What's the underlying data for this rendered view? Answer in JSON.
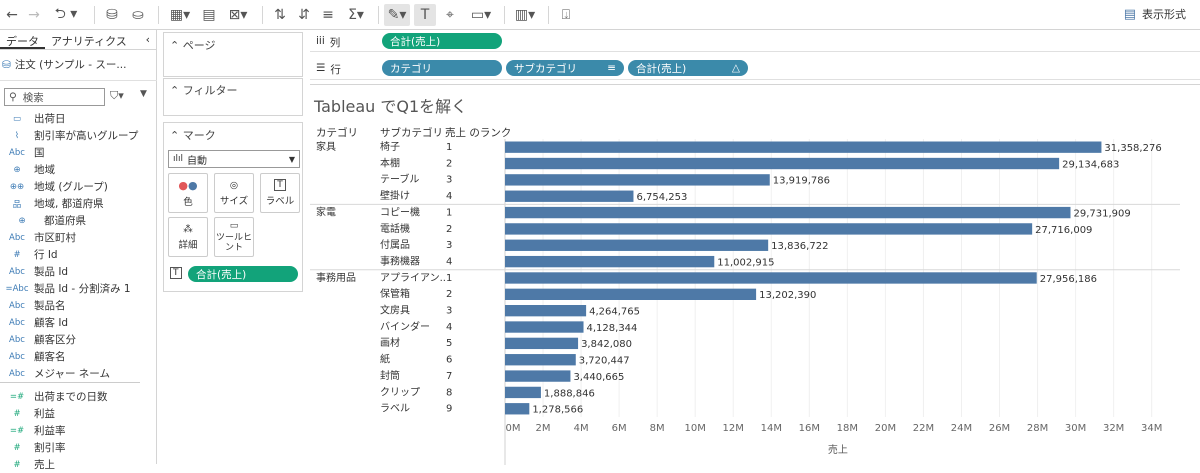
{
  "toolbar": {
    "show_me_label": "表示形式"
  },
  "data_pane": {
    "tabs": [
      "データ",
      "アナリティクス"
    ],
    "datasource": "注文 (サンプル - スー...",
    "search_placeholder": "検索",
    "fields": [
      {
        "icon": "calendar",
        "label": "出荷日",
        "kind": "dim"
      },
      {
        "icon": "paperclip",
        "label": "割引率が高いグループ",
        "kind": "dim"
      },
      {
        "icon": "Abc",
        "label": "国",
        "kind": "dim"
      },
      {
        "icon": "globe",
        "label": "地域",
        "kind": "dim"
      },
      {
        "icon": "group",
        "label": "地域 (グループ)",
        "kind": "dim"
      },
      {
        "icon": "hierarchy",
        "label": "地域, 都道府県",
        "kind": "dim"
      },
      {
        "icon": "globe",
        "label": "都道府県",
        "kind": "dim",
        "sub": true
      },
      {
        "icon": "Abc",
        "label": "市区町村",
        "kind": "dim"
      },
      {
        "icon": "#",
        "label": "行 Id",
        "kind": "dim"
      },
      {
        "icon": "Abc",
        "label": "製品 Id",
        "kind": "dim"
      },
      {
        "icon": "=Abc",
        "label": "製品 Id - 分割済み 1",
        "kind": "dim"
      },
      {
        "icon": "Abc",
        "label": "製品名",
        "kind": "dim"
      },
      {
        "icon": "Abc",
        "label": "顧客 Id",
        "kind": "dim"
      },
      {
        "icon": "Abc",
        "label": "顧客区分",
        "kind": "dim"
      },
      {
        "icon": "Abc",
        "label": "顧客名",
        "kind": "dim"
      },
      {
        "icon": "Abc",
        "label": "メジャー ネーム",
        "kind": "dim"
      },
      {
        "icon": "=#",
        "label": "出荷までの日数",
        "kind": "meas"
      },
      {
        "icon": "#",
        "label": "利益",
        "kind": "meas"
      },
      {
        "icon": "=#",
        "label": "利益率",
        "kind": "meas"
      },
      {
        "icon": "#",
        "label": "割引率",
        "kind": "meas"
      },
      {
        "icon": "#",
        "label": "売上",
        "kind": "meas"
      }
    ]
  },
  "cards": {
    "pages": "ページ",
    "filters": "フィルター",
    "marks": "マーク",
    "mark_type": "自動",
    "buttons": [
      "色",
      "サイズ",
      "ラベル",
      "詳細",
      "ツールヒント"
    ],
    "label_pill": "合計(売上)"
  },
  "shelves": {
    "columns_label": "列",
    "rows_label": "行",
    "columns_pills": [
      "合計(売上)"
    ],
    "rows_pills": [
      "カテゴリ",
      "サブカテゴリ",
      "合計(売上)"
    ]
  },
  "view": {
    "title": "Tableau でQ1を解く",
    "headers": [
      "カテゴリ",
      "サブカテゴリ",
      "売上 のランク"
    ]
  },
  "chart_data": {
    "type": "bar",
    "orientation": "horizontal",
    "bar_color": "#4e79a7",
    "xlabel": "売上",
    "xlim": [
      0,
      35000000
    ],
    "x_ticks": [
      "0M",
      "2M",
      "4M",
      "6M",
      "8M",
      "10M",
      "12M",
      "14M",
      "16M",
      "18M",
      "20M",
      "22M",
      "24M",
      "26M",
      "28M",
      "30M",
      "32M",
      "34M"
    ],
    "groups": [
      {
        "category": "家具",
        "rows": [
          {
            "sub": "椅子",
            "rank": 1,
            "value": 31358276,
            "label": "31,358,276"
          },
          {
            "sub": "本棚",
            "rank": 2,
            "value": 29134683,
            "label": "29,134,683"
          },
          {
            "sub": "テーブル",
            "rank": 3,
            "value": 13919786,
            "label": "13,919,786"
          },
          {
            "sub": "壁掛け",
            "rank": 4,
            "value": 6754253,
            "label": "6,754,253"
          }
        ]
      },
      {
        "category": "家電",
        "rows": [
          {
            "sub": "コピー機",
            "rank": 1,
            "value": 29731909,
            "label": "29,731,909"
          },
          {
            "sub": "電話機",
            "rank": 2,
            "value": 27716009,
            "label": "27,716,009"
          },
          {
            "sub": "付属品",
            "rank": 3,
            "value": 13836722,
            "label": "13,836,722"
          },
          {
            "sub": "事務機器",
            "rank": 4,
            "value": 11002915,
            "label": "11,002,915"
          }
        ]
      },
      {
        "category": "事務用品",
        "rows": [
          {
            "sub": "アプライアン..",
            "rank": 1,
            "value": 27956186,
            "label": "27,956,186"
          },
          {
            "sub": "保管箱",
            "rank": 2,
            "value": 13202390,
            "label": "13,202,390"
          },
          {
            "sub": "文房具",
            "rank": 3,
            "value": 4264765,
            "label": "4,264,765"
          },
          {
            "sub": "バインダー",
            "rank": 4,
            "value": 4128344,
            "label": "4,128,344"
          },
          {
            "sub": "画材",
            "rank": 5,
            "value": 3842080,
            "label": "3,842,080"
          },
          {
            "sub": "紙",
            "rank": 6,
            "value": 3720447,
            "label": "3,720,447"
          },
          {
            "sub": "封筒",
            "rank": 7,
            "value": 3440665,
            "label": "3,440,665"
          },
          {
            "sub": "クリップ",
            "rank": 8,
            "value": 1888846,
            "label": "1,888,846"
          },
          {
            "sub": "ラベル",
            "rank": 9,
            "value": 1278566,
            "label": "1,278,566"
          }
        ]
      }
    ]
  }
}
